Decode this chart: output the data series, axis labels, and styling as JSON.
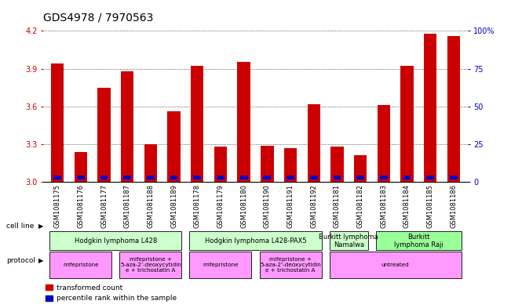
{
  "title": "GDS4978 / 7970563",
  "samples": [
    "GSM1081175",
    "GSM1081176",
    "GSM1081177",
    "GSM1081187",
    "GSM1081188",
    "GSM1081189",
    "GSM1081178",
    "GSM1081179",
    "GSM1081180",
    "GSM1081190",
    "GSM1081191",
    "GSM1081192",
    "GSM1081181",
    "GSM1081182",
    "GSM1081183",
    "GSM1081184",
    "GSM1081185",
    "GSM1081186"
  ],
  "red_values": [
    3.94,
    3.24,
    3.75,
    3.88,
    3.3,
    3.56,
    3.92,
    3.28,
    3.95,
    3.29,
    3.27,
    3.62,
    3.28,
    3.21,
    3.61,
    3.92,
    4.18,
    4.16
  ],
  "ymin": 3.0,
  "ymax": 4.2,
  "yticks": [
    3.0,
    3.3,
    3.6,
    3.9,
    4.2
  ],
  "y2ticks": [
    0,
    25,
    50,
    75,
    100
  ],
  "y2labels": [
    "0",
    "25",
    "50",
    "75",
    "100%"
  ],
  "cell_line_groups": [
    {
      "label": "Hodgkin lymphoma L428",
      "start": 0,
      "end": 5,
      "color": "#ccffcc"
    },
    {
      "label": "Hodgkin lymphoma L428-PAX5",
      "start": 6,
      "end": 11,
      "color": "#ccffcc"
    },
    {
      "label": "Burkitt lymphoma\nNamalwa",
      "start": 12,
      "end": 13,
      "color": "#ccffcc"
    },
    {
      "label": "Burkitt\nlymphoma Raji",
      "start": 14,
      "end": 17,
      "color": "#99ff99"
    }
  ],
  "protocol_groups": [
    {
      "label": "mifepristone",
      "start": 0,
      "end": 2,
      "color": "#ff99ff"
    },
    {
      "label": "mifepristone +\n5-aza-2'-deoxycytidin\ne + trichostatin A",
      "start": 3,
      "end": 5,
      "color": "#ff99ff"
    },
    {
      "label": "mifepristone",
      "start": 6,
      "end": 8,
      "color": "#ff99ff"
    },
    {
      "label": "mifepristone +\n5-aza-2'-deoxycytidin\ne + trichostatin A",
      "start": 9,
      "end": 11,
      "color": "#ff99ff"
    },
    {
      "label": "untreated",
      "start": 12,
      "end": 17,
      "color": "#ff99ff"
    }
  ],
  "bar_color_red": "#cc0000",
  "bar_color_blue": "#0000cc",
  "bar_width": 0.55,
  "bg_color": "#ffffff",
  "grid_color": "#000000",
  "title_fontsize": 10,
  "tick_fontsize": 7,
  "left_ylabel_color": "#cc0000",
  "right_ylabel_color": "#0000cc"
}
